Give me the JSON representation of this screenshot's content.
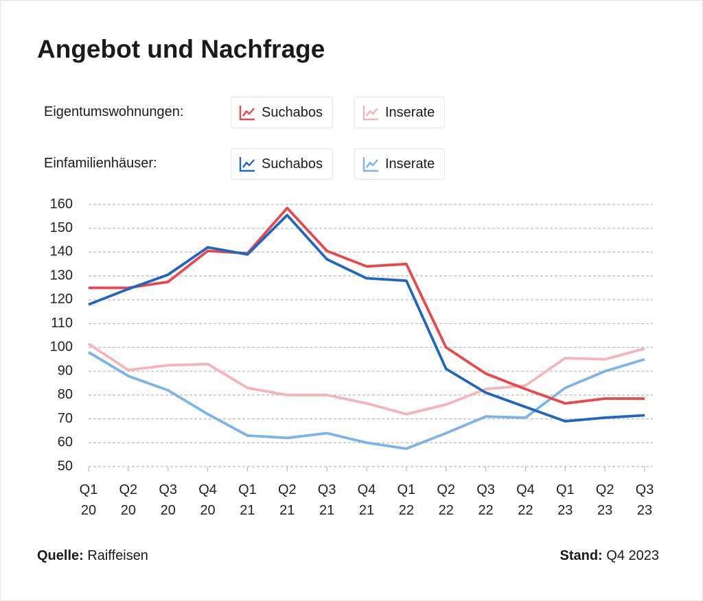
{
  "chart_data": {
    "type": "line",
    "title": "Angebot und Nachfrage",
    "legend_groups": [
      "Eigentumswohnungen:",
      "Einfamilienhäuser:"
    ],
    "categories": [
      "Q1 20",
      "Q2 20",
      "Q3 20",
      "Q4 20",
      "Q1 21",
      "Q2 21",
      "Q3 21",
      "Q4 21",
      "Q1 22",
      "Q2 22",
      "Q3 22",
      "Q4 22",
      "Q1 23",
      "Q2 23",
      "Q3 23"
    ],
    "series": [
      {
        "name": "Suchabos",
        "color": "#e8474c",
        "values": [
          125,
          125,
          127.5,
          140.5,
          139.5,
          158.5,
          140.5,
          134,
          135,
          100,
          89,
          82.5,
          76.5,
          78.5,
          78.5
        ]
      },
      {
        "name": "Inserate",
        "color": "#f5b5b8",
        "values": [
          101.5,
          90.5,
          92.5,
          93,
          83,
          80,
          80,
          76.5,
          72,
          76,
          82.5,
          84,
          95.5,
          95,
          99.5
        ]
      },
      {
        "name": "Suchabos",
        "color": "#1f66c1",
        "values": [
          118,
          124.5,
          130.5,
          142,
          139,
          155.5,
          137,
          129,
          128,
          91,
          81,
          75,
          69,
          70.5,
          71.5
        ]
      },
      {
        "name": "Inserate",
        "color": "#7db3e8",
        "values": [
          98,
          88,
          82,
          72,
          63,
          62,
          64,
          60,
          57.5,
          64,
          71,
          70.5,
          83,
          90,
          95
        ]
      }
    ],
    "ylim": [
      50,
      160
    ],
    "yticks": [
      50,
      60,
      70,
      80,
      90,
      100,
      110,
      120,
      130,
      140,
      150,
      160
    ],
    "grid": true,
    "source_label": "Quelle:",
    "source": "Raiffeisen",
    "date_label": "Stand:",
    "date": "Q4 2023"
  }
}
